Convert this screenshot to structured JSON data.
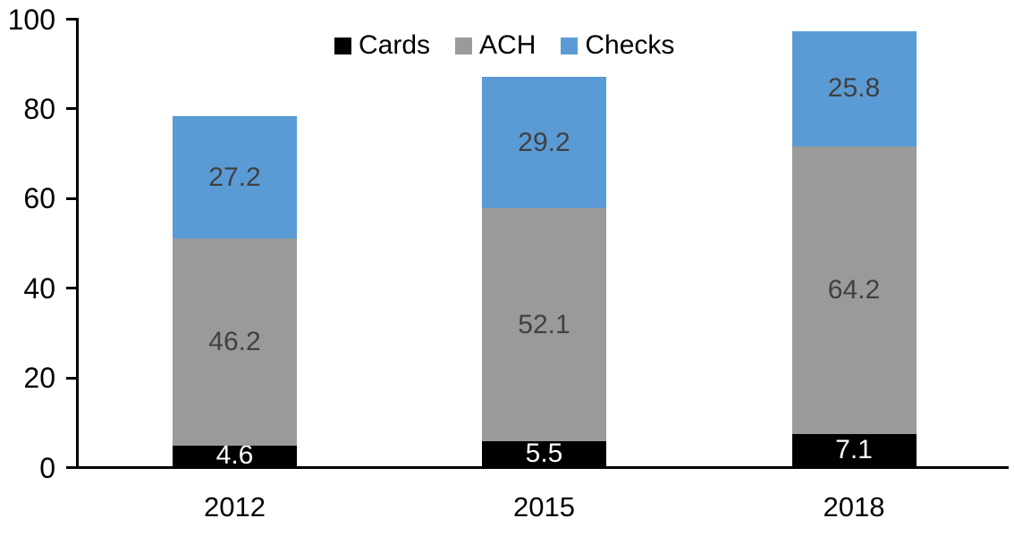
{
  "chart_data": {
    "type": "bar",
    "stacked": true,
    "title": "",
    "categories": [
      "2012",
      "2015",
      "2018"
    ],
    "series": [
      {
        "name": "Cards",
        "color": "#000000",
        "label_color": "#ffffff",
        "values": [
          4.6,
          5.5,
          7.1
        ]
      },
      {
        "name": "ACH",
        "color": "#9A9A9A",
        "label_color": "#404040",
        "values": [
          46.2,
          52.1,
          64.2
        ]
      },
      {
        "name": "Checks",
        "color": "#5B9BD5",
        "label_color": "#404040",
        "values": [
          27.2,
          29.2,
          25.8
        ]
      }
    ],
    "totals": [
      78.0,
      86.8,
      97.1
    ],
    "ylim": [
      0,
      100
    ],
    "yticks": [
      0,
      20,
      40,
      60,
      80,
      100
    ],
    "xlabel": "",
    "ylabel": "",
    "grid": false,
    "legend_position": "top",
    "axis_color": "#000000"
  }
}
